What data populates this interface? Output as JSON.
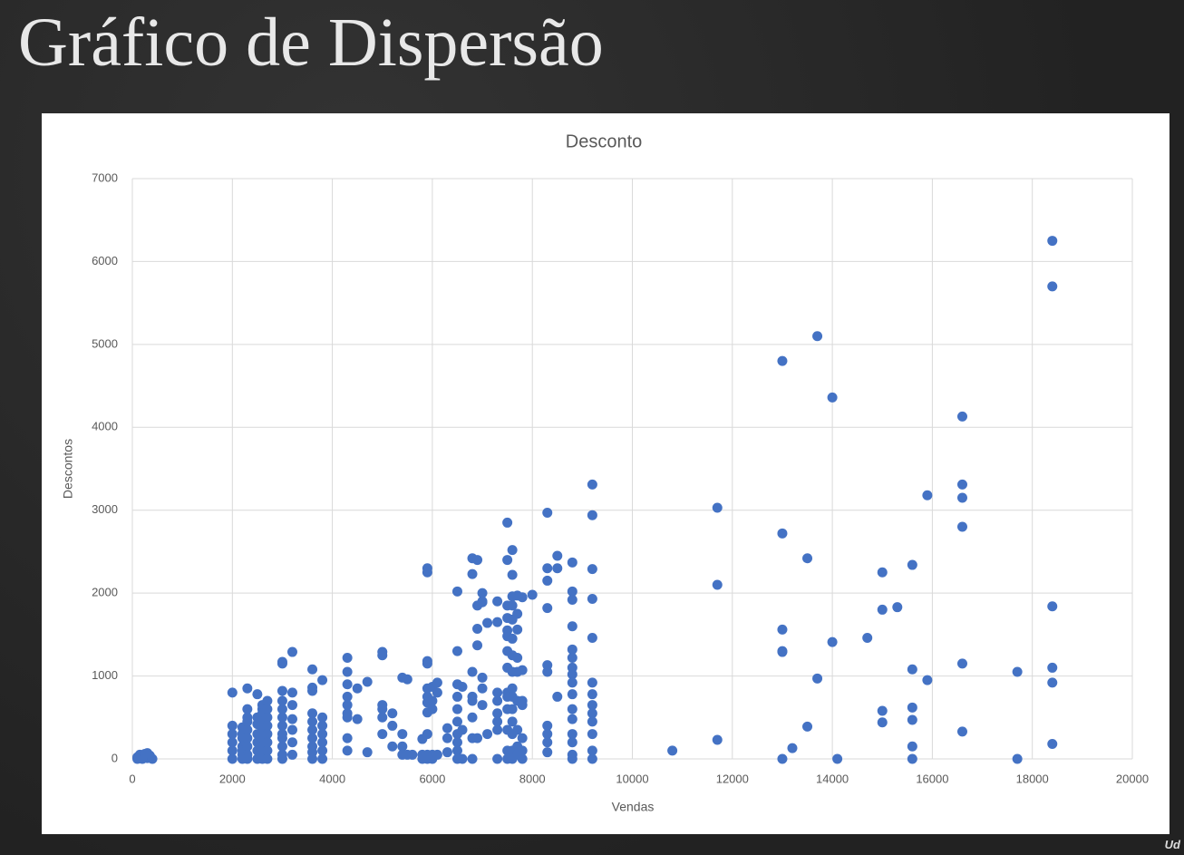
{
  "chart_data": {
    "type": "scatter",
    "page_title": "Gráfico de Dispersão",
    "title": "Desconto",
    "x_label": "Vendas",
    "y_label": "Descontos",
    "watermark": "Ud",
    "color": "#4472c4",
    "grid": true,
    "xlim": [
      0,
      20000
    ],
    "ylim": [
      0,
      7000
    ],
    "xticks": [
      0,
      2000,
      4000,
      6000,
      8000,
      10000,
      12000,
      14000,
      16000,
      18000,
      20000
    ],
    "yticks": [
      0,
      1000,
      2000,
      3000,
      4000,
      5000,
      6000,
      7000
    ],
    "x": [
      100,
      150,
      200,
      250,
      300,
      350,
      400,
      200,
      300,
      100,
      2000,
      2000,
      2000,
      2000,
      2000,
      2000,
      2200,
      2200,
      2200,
      2200,
      2200,
      2200,
      2200,
      2300,
      2300,
      2300,
      2300,
      2300,
      2300,
      2300,
      2300,
      2300,
      2500,
      2500,
      2500,
      2500,
      2500,
      2500,
      2500,
      2600,
      2600,
      2600,
      2600,
      2600,
      2600,
      2600,
      2600,
      2600,
      2700,
      2700,
      2700,
      2700,
      2700,
      2700,
      2700,
      2700,
      3000,
      3000,
      3000,
      3000,
      3000,
      3000,
      3000,
      3000,
      3000,
      3000,
      3000,
      3000,
      3200,
      3200,
      3200,
      3200,
      3200,
      3200,
      3200,
      3600,
      3600,
      3600,
      3600,
      3600,
      3600,
      3600,
      3600,
      3600,
      3600,
      3800,
      3800,
      3800,
      3800,
      3800,
      3800,
      3800,
      4300,
      4300,
      4300,
      4300,
      4300,
      4300,
      4300,
      4300,
      4300,
      4500,
      4500,
      4700,
      4700,
      5000,
      5000,
      5000,
      5000,
      5000,
      5000,
      5200,
      5200,
      5200,
      5400,
      5400,
      5400,
      5400,
      5500,
      5500,
      5600,
      5800,
      5800,
      5800,
      5900,
      5900,
      5900,
      5900,
      5900,
      5900,
      5900,
      5900,
      5900,
      5900,
      5900,
      6000,
      6000,
      6000,
      6000,
      6000,
      6100,
      6100,
      6100,
      6300,
      6300,
      6300,
      6500,
      6500,
      6500,
      6500,
      6500,
      6500,
      6500,
      6500,
      6500,
      6500,
      6600,
      6600,
      6600,
      6800,
      6800,
      6800,
      6800,
      6800,
      6800,
      6800,
      6800,
      6900,
      6900,
      6900,
      6900,
      6900,
      7000,
      7000,
      7000,
      7000,
      7000,
      7000,
      7100,
      7100,
      7300,
      7300,
      7300,
      7300,
      7300,
      7300,
      7300,
      7300,
      7500,
      7500,
      7500,
      7500,
      7500,
      7500,
      7500,
      7500,
      7500,
      7500,
      7500,
      7500,
      7500,
      7500,
      7600,
      7600,
      7600,
      7600,
      7600,
      7600,
      7600,
      7600,
      7600,
      7600,
      7600,
      7600,
      7600,
      7600,
      7600,
      7700,
      7700,
      7700,
      7700,
      7700,
      7700,
      7700,
      7700,
      7700,
      7800,
      7800,
      7800,
      7800,
      7800,
      7800,
      7800,
      8000,
      8300,
      8300,
      8300,
      8300,
      8300,
      8300,
      8300,
      8300,
      8300,
      8300,
      8500,
      8500,
      8500,
      8800,
      8800,
      8800,
      8800,
      8800,
      8800,
      8800,
      8800,
      8800,
      8800,
      8800,
      8800,
      8800,
      8800,
      8800,
      8800,
      9200,
      9200,
      9200,
      9200,
      9200,
      9200,
      9200,
      9200,
      9200,
      9200,
      9200,
      9200,
      9200,
      10800,
      11700,
      11700,
      11700,
      13000,
      13000,
      13000,
      13000,
      13000,
      13000,
      13200,
      13500,
      13500,
      13700,
      13700,
      14000,
      14000,
      14100,
      14700,
      15000,
      15000,
      15000,
      15000,
      15300,
      15600,
      15600,
      15600,
      15600,
      15600,
      15600,
      15900,
      15900,
      16600,
      16600,
      16600,
      16600,
      16600,
      16600,
      17700,
      17700,
      18400,
      18400,
      18400,
      18400,
      18400,
      18400
    ],
    "values": [
      20,
      50,
      30,
      60,
      10,
      40,
      0,
      0,
      70,
      0,
      800,
      400,
      300,
      200,
      100,
      0,
      380,
      300,
      250,
      150,
      100,
      50,
      0,
      850,
      600,
      500,
      450,
      350,
      250,
      150,
      50,
      0,
      780,
      500,
      420,
      300,
      200,
      100,
      0,
      650,
      600,
      550,
      450,
      350,
      250,
      150,
      50,
      0,
      700,
      600,
      500,
      400,
      300,
      200,
      100,
      0,
      1170,
      1150,
      820,
      700,
      600,
      500,
      400,
      300,
      250,
      150,
      50,
      0,
      1290,
      800,
      650,
      480,
      350,
      200,
      50,
      1080,
      860,
      820,
      550,
      450,
      350,
      250,
      150,
      80,
      0,
      950,
      500,
      400,
      300,
      200,
      100,
      0,
      1220,
      1050,
      900,
      750,
      650,
      550,
      500,
      250,
      100,
      850,
      480,
      930,
      80,
      1290,
      1250,
      650,
      600,
      500,
      300,
      550,
      400,
      150,
      980,
      300,
      150,
      50,
      960,
      50,
      50,
      240,
      50,
      0,
      2300,
      2250,
      1180,
      1150,
      850,
      750,
      680,
      560,
      300,
      50,
      0,
      870,
      700,
      600,
      50,
      0,
      920,
      800,
      50,
      370,
      250,
      80,
      2020,
      1300,
      900,
      750,
      600,
      450,
      300,
      200,
      100,
      0,
      870,
      350,
      0,
      2420,
      2230,
      1050,
      750,
      700,
      500,
      250,
      0,
      2400,
      1850,
      1570,
      1370,
      250,
      2000,
      1900,
      1890,
      980,
      850,
      650,
      1640,
      300,
      1650,
      1900,
      800,
      700,
      550,
      450,
      350,
      0,
      2850,
      2400,
      1850,
      1700,
      1550,
      1480,
      1300,
      1100,
      800,
      750,
      600,
      350,
      100,
      0,
      2520,
      2220,
      1960,
      1850,
      1680,
      1450,
      1250,
      1050,
      850,
      750,
      600,
      450,
      300,
      100,
      0,
      1970,
      1750,
      1560,
      1220,
      1050,
      700,
      350,
      150,
      50,
      1950,
      1070,
      700,
      650,
      250,
      100,
      0,
      1980,
      2970,
      2300,
      2150,
      1820,
      1130,
      1050,
      400,
      300,
      200,
      80,
      2450,
      2300,
      750,
      2370,
      2020,
      1920,
      1600,
      1320,
      1220,
      1100,
      1020,
      920,
      780,
      600,
      480,
      300,
      200,
      50,
      0,
      3310,
      2940,
      2290,
      1930,
      1460,
      920,
      780,
      650,
      550,
      450,
      300,
      100,
      0,
      100,
      3030,
      2100,
      230,
      4800,
      2720,
      1560,
      1300,
      1290,
      0,
      130,
      2420,
      390,
      5100,
      970,
      4360,
      1410,
      0,
      1460,
      2250,
      1800,
      580,
      440,
      1830,
      2340,
      1080,
      620,
      470,
      150,
      0,
      3180,
      950,
      4130,
      3310,
      3150,
      2800,
      1150,
      330,
      1050,
      0,
      6250,
      5700,
      1840,
      1100,
      920,
      180
    ]
  }
}
